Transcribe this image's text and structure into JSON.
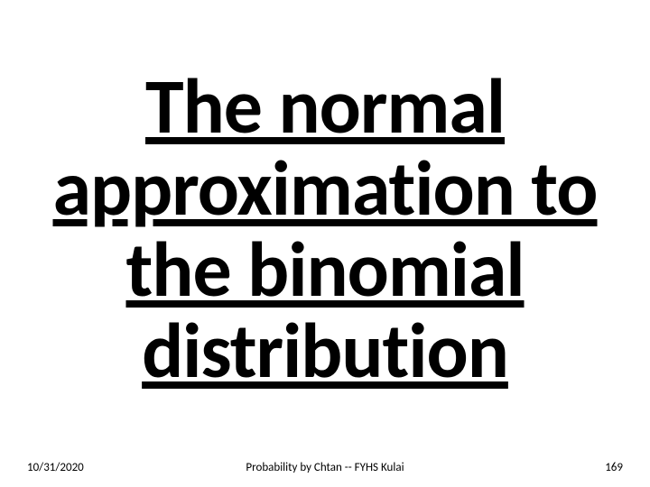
{
  "slide": {
    "title": "The normal approximation to the binomial distribution",
    "title_fontsize": 86,
    "title_color": "#000000",
    "title_weight": 700,
    "title_underline": true,
    "background_color": "#ffffff"
  },
  "footer": {
    "date": "10/31/2020",
    "center_text": "Probability by Chtan -- FYHS Kulai",
    "page_number": "169",
    "fontsize": 13,
    "color": "#000000"
  }
}
